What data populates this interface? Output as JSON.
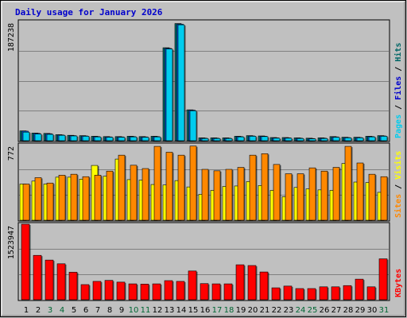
{
  "chart_data": {
    "type": "bar",
    "title": "Daily usage for January 2026",
    "colors": {
      "background": "#c0c0c0",
      "panel": "#c0c0c0",
      "grid": "#808080",
      "pages": "#00ccee",
      "pages_dark": "#006666",
      "files": "#0066ff",
      "hits": "#006666",
      "visits": "#ffff00",
      "sites": "#ff8800",
      "kbytes": "#ff0000",
      "weekday_label": "#000000",
      "weekend_label": "#006633"
    },
    "days": [
      "1",
      "2",
      "3",
      "4",
      "5",
      "6",
      "7",
      "8",
      "9",
      "10",
      "11",
      "12",
      "13",
      "14",
      "15",
      "16",
      "17",
      "18",
      "19",
      "20",
      "21",
      "22",
      "23",
      "24",
      "25",
      "26",
      "27",
      "28",
      "29",
      "30",
      "31"
    ],
    "weekend_days": [
      "3",
      "4",
      "10",
      "11",
      "17",
      "18",
      "24",
      "25",
      "31"
    ],
    "panels": [
      {
        "name": "hits-files-pages",
        "ymax_label": "187238",
        "ymax": 187238,
        "right_labels": [
          {
            "text": "Pages",
            "color": "#00ccee"
          },
          {
            "text": " / ",
            "color": "#000000"
          },
          {
            "text": "Files",
            "color": "#0000cc"
          },
          {
            "text": " / ",
            "color": "#000000"
          },
          {
            "text": "Hits",
            "color": "#006666"
          }
        ],
        "series": [
          {
            "key": "hits",
            "color": "#006666",
            "values": [
              15500,
              12000,
              11500,
              9500,
              8500,
              8000,
              7000,
              6500,
              6500,
              7000,
              6500,
              7000,
              146000,
              184000,
              48500,
              4500,
              4500,
              4500,
              7000,
              8000,
              7500,
              5000,
              5000,
              4500,
              4000,
              4500,
              6500,
              5500,
              5500,
              7000,
              8000
            ]
          },
          {
            "key": "files",
            "color": "#0066ff",
            "values": [
              15000,
              11500,
              11000,
              9000,
              8000,
              7500,
              6500,
              6000,
              6000,
              6500,
              6000,
              6500,
              145000,
              183000,
              48000,
              4000,
              4000,
              4000,
              6500,
              7500,
              7000,
              4500,
              4500,
              4000,
              3500,
              4000,
              6000,
              5000,
              5000,
              6500,
              7500
            ]
          },
          {
            "key": "pages",
            "color": "#00ccee",
            "values": [
              13500,
              10500,
              10000,
              8500,
              7500,
              7000,
              6000,
              5500,
              5500,
              6000,
              5500,
              6000,
              144000,
              182000,
              47000,
              3500,
              3500,
              3500,
              6000,
              7000,
              6500,
              4000,
              4000,
              3500,
              3000,
              3500,
              5500,
              4500,
              4500,
              6000,
              7000
            ]
          }
        ]
      },
      {
        "name": "sites-visits",
        "ymax_label": "772",
        "ymax": 772,
        "right_labels": [
          {
            "text": "Sites",
            "color": "#ff8800"
          },
          {
            "text": " / ",
            "color": "#000000"
          },
          {
            "text": "Visits",
            "color": "#ffff00"
          }
        ],
        "series": [
          {
            "key": "sites",
            "color": "#ff8800",
            "values": [
              370,
              435,
              380,
              460,
              470,
              445,
              460,
              502,
              665,
              562,
              528,
              755,
              695,
              665,
              758,
              520,
              505,
              520,
              540,
              665,
              680,
              570,
              475,
              475,
              535,
              502,
              540,
              755,
              585,
              470,
              445
            ]
          },
          {
            "key": "visits",
            "color": "#ffff00",
            "values": [
              370,
              400,
              370,
              440,
              440,
              420,
              560,
              450,
              625,
              415,
              410,
              365,
              360,
              405,
              340,
              265,
              305,
              345,
              350,
              395,
              355,
              305,
              240,
              335,
              320,
              310,
              305,
              580,
              390,
              385,
              285
            ]
          }
        ]
      },
      {
        "name": "kbytes",
        "ymax_label": "1523947",
        "ymax": 1523947,
        "right_labels": [
          {
            "text": "KBytes",
            "color": "#ff0000"
          }
        ],
        "series": [
          {
            "key": "kbytes",
            "color": "#ff0000",
            "values": [
              1523947,
              895000,
              800000,
              725000,
              555000,
              305000,
              370000,
              390000,
              355000,
              320000,
              315000,
              320000,
              385000,
              370000,
              580000,
              325000,
              320000,
              320000,
              705000,
              690000,
              560000,
              240000,
              275000,
              225000,
              225000,
              260000,
              260000,
              285000,
              415000,
              260000,
              825000
            ]
          }
        ]
      }
    ]
  }
}
